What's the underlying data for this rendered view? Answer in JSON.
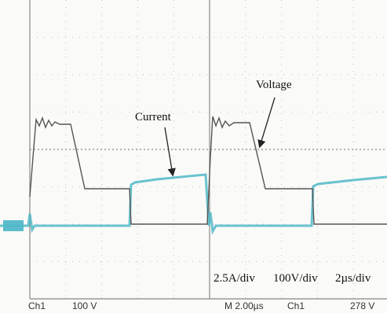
{
  "annotations": {
    "current": "Current",
    "voltage": "Voltage"
  },
  "scales": {
    "current": "2.5A/div",
    "voltage": "100V/div",
    "time": "2µs/div"
  },
  "status_bar": {
    "channel": "Ch1",
    "volts": "100 V",
    "timebase": "M 2.00µs",
    "trigger_channel": "Ch1",
    "trigger_level": "278 V"
  }
}
